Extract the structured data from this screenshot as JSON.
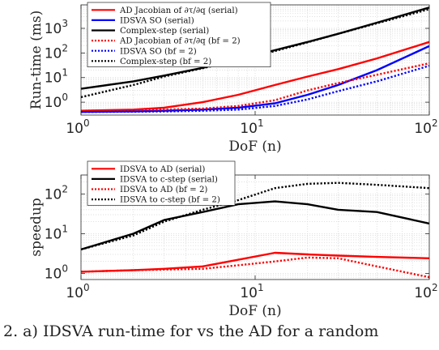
{
  "chart_data": [
    {
      "type": "line",
      "log_x": true,
      "log_y": true,
      "xlim": [
        1,
        100
      ],
      "ylim": [
        0.3,
        9000
      ],
      "xlabel": "DoF (n)",
      "ylabel": "Run-time (ms)",
      "xticks": [
        {
          "v": 1,
          "label": "10",
          "exp": "0"
        },
        {
          "v": 10,
          "label": "10",
          "exp": "1"
        },
        {
          "v": 100,
          "label": "10",
          "exp": "2"
        }
      ],
      "yticks": [
        {
          "v": 1,
          "label": "10",
          "exp": "0"
        },
        {
          "v": 10,
          "label": "10",
          "exp": "1"
        },
        {
          "v": 100,
          "label": "10",
          "exp": "2"
        },
        {
          "v": 1000,
          "label": "10",
          "exp": "3"
        }
      ],
      "grid": true,
      "legend_position": "top-left",
      "series": [
        {
          "name": "AD Jacobian of ∂τ/∂q (serial)",
          "color": "#ff0000",
          "dash": "solid",
          "x": [
            1,
            2,
            3,
            5,
            8,
            13,
            20,
            30,
            50,
            100
          ],
          "y": [
            0.45,
            0.5,
            0.6,
            1.0,
            2.0,
            5.0,
            11,
            22,
            60,
            280
          ]
        },
        {
          "name": "IDSVA SO (serial)",
          "color": "#0000ff",
          "dash": "solid",
          "x": [
            1,
            2,
            3,
            5,
            8,
            13,
            20,
            30,
            50,
            100
          ],
          "y": [
            0.4,
            0.42,
            0.45,
            0.5,
            0.6,
            0.9,
            2.0,
            5.0,
            20,
            190
          ]
        },
        {
          "name": "Complex-step (serial)",
          "color": "#000000",
          "dash": "solid",
          "x": [
            1,
            2,
            3,
            5,
            8,
            13,
            20,
            30,
            50,
            100
          ],
          "y": [
            3.5,
            7,
            12,
            25,
            55,
            130,
            280,
            600,
            1700,
            7000
          ]
        },
        {
          "name": "AD Jacobian of ∂τ/∂q (bf = 2)",
          "color": "#ff0000",
          "dash": "dotted",
          "x": [
            1,
            2,
            3,
            5,
            8,
            13,
            20,
            30,
            50,
            100
          ],
          "y": [
            0.45,
            0.48,
            0.5,
            0.55,
            0.7,
            1.2,
            3.0,
            6.0,
            13,
            38
          ]
        },
        {
          "name": "IDSVA SO (bf = 2)",
          "color": "#0000ff",
          "dash": "dotted",
          "x": [
            1,
            2,
            3,
            5,
            8,
            13,
            20,
            30,
            50,
            100
          ],
          "y": [
            0.4,
            0.41,
            0.42,
            0.45,
            0.5,
            0.7,
            1.3,
            2.8,
            7,
            30
          ]
        },
        {
          "name": "Complex-step (bf = 2)",
          "color": "#000000",
          "dash": "dotted",
          "x": [
            1,
            2,
            3,
            5,
            8,
            13,
            20,
            30,
            50,
            100
          ],
          "y": [
            1.6,
            5,
            11,
            24,
            50,
            120,
            270,
            600,
            1600,
            6000
          ]
        }
      ]
    },
    {
      "type": "line",
      "log_x": true,
      "log_y": true,
      "xlim": [
        1,
        100
      ],
      "ylim": [
        0.7,
        300
      ],
      "xlabel": "DoF (n)",
      "ylabel": "speedup",
      "xticks": [
        {
          "v": 1,
          "label": "10",
          "exp": "0"
        },
        {
          "v": 10,
          "label": "10",
          "exp": "1"
        },
        {
          "v": 100,
          "label": "10",
          "exp": "2"
        }
      ],
      "yticks": [
        {
          "v": 1,
          "label": "10",
          "exp": "0"
        },
        {
          "v": 10,
          "label": "10",
          "exp": "1"
        },
        {
          "v": 100,
          "label": "10",
          "exp": "2"
        }
      ],
      "grid": true,
      "legend_position": "top-left",
      "series": [
        {
          "name": "IDSVA to AD (serial)",
          "color": "#ff0000",
          "dash": "solid",
          "x": [
            1,
            2,
            3,
            5,
            8,
            13,
            20,
            30,
            50,
            100
          ],
          "y": [
            1.1,
            1.2,
            1.3,
            1.5,
            2.2,
            3.3,
            3.0,
            2.8,
            2.6,
            2.4
          ]
        },
        {
          "name": "IDSVA to c-step (serial)",
          "color": "#000000",
          "dash": "solid",
          "x": [
            1,
            2,
            3,
            5,
            8,
            13,
            20,
            30,
            50,
            100
          ],
          "y": [
            4,
            10,
            22,
            35,
            55,
            65,
            55,
            40,
            35,
            18
          ]
        },
        {
          "name": "IDSVA to AD (bf = 2)",
          "color": "#ff0000",
          "dash": "dotted",
          "x": [
            1,
            2,
            3,
            5,
            8,
            13,
            20,
            30,
            50,
            100
          ],
          "y": [
            1.1,
            1.2,
            1.25,
            1.3,
            1.6,
            2.0,
            2.5,
            2.4,
            1.5,
            0.8
          ]
        },
        {
          "name": "IDSVA to c-step (bf = 2)",
          "color": "#000000",
          "dash": "dotted",
          "x": [
            1,
            2,
            3,
            5,
            8,
            13,
            20,
            30,
            50,
            100
          ],
          "y": [
            4,
            9,
            20,
            40,
            70,
            140,
            180,
            190,
            170,
            140
          ]
        }
      ]
    }
  ],
  "caption_fragment": "2. a) IDSVA run-time for vs the AD for a random"
}
